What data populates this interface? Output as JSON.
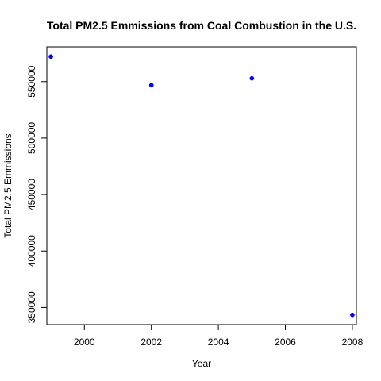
{
  "chart_data": {
    "type": "scatter",
    "title": "Total PM2.5 Emmissions from Coal Combustion in the U.S.",
    "xlabel": "Year",
    "ylabel": "Total PM2.5 Emmissions",
    "series": [
      {
        "x": [
          1999,
          2002,
          2005,
          2008
        ],
        "y": [
          572126,
          546789,
          552881,
          343432
        ],
        "color": "#0000ff"
      }
    ],
    "x_ticks": [
      2000,
      2002,
      2004,
      2006,
      2008
    ],
    "y_ticks": [
      350000,
      400000,
      450000,
      500000,
      550000
    ],
    "x_tick_labels": [
      "2000",
      "2002",
      "2004",
      "2006",
      "2008"
    ],
    "y_tick_labels": [
      "350000",
      "400000",
      "450000",
      "500000",
      "550000"
    ],
    "xlim": [
      1998.88,
      2008.12
    ],
    "ylim": [
      334805,
      580753
    ],
    "grid": false,
    "legend": "none",
    "colors": {
      "points": "#0000ff",
      "axis": "#000000",
      "background": "#ffffff"
    }
  }
}
